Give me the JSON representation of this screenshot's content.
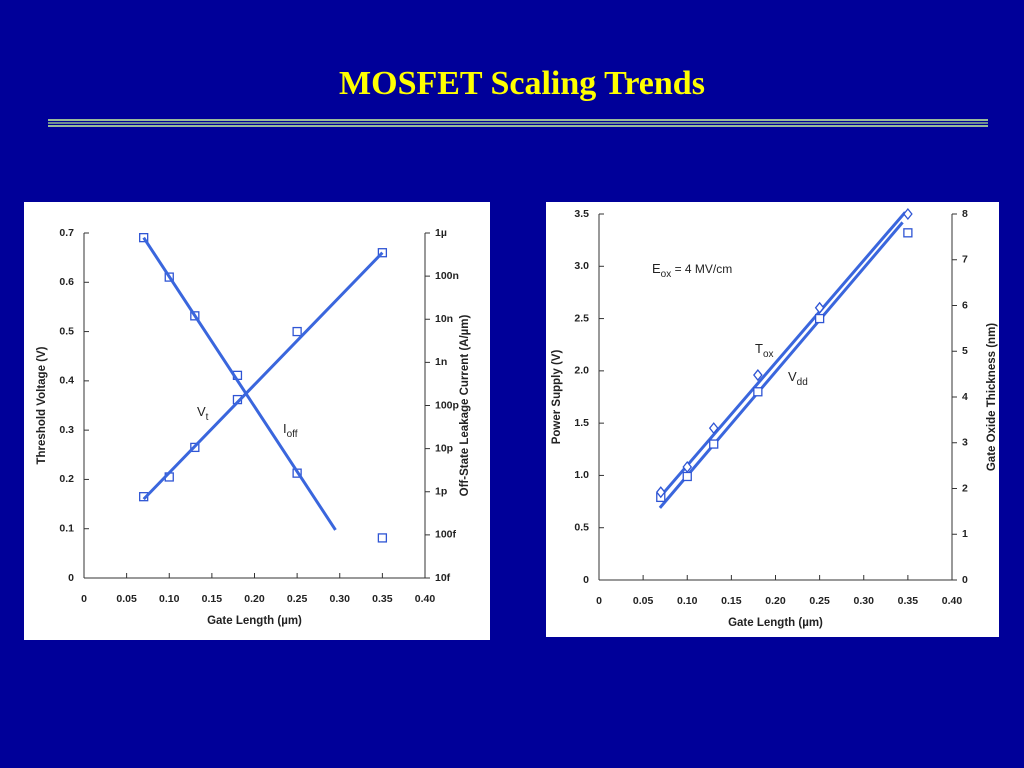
{
  "title": "MOSFET Scaling Trends",
  "chart_data": [
    {
      "type": "scatter",
      "xlabel": "Gate Length (µm)",
      "ylabel": "Threshold Voltage (V)",
      "y2label": "Off-State Leakage Current  (A/µm)",
      "xlim": [
        0,
        0.4
      ],
      "xticks": [
        0,
        0.05,
        {
          "value": 0.1,
          "label": "0.10"
        },
        0.15,
        {
          "value": 0.2,
          "label": "0.20"
        },
        0.25,
        {
          "value": 0.3,
          "label": "0.30"
        },
        0.35,
        {
          "value": 0.4,
          "label": "0.40"
        }
      ],
      "ylim": [
        0,
        0.7
      ],
      "yticks": [
        0,
        0.1,
        0.2,
        0.3,
        0.4,
        0.5,
        0.6,
        0.7
      ],
      "y2scale": "log",
      "y2lim": [
        1e-14,
        1e-06
      ],
      "y2ticks": [
        {
          "value": 1e-14,
          "label": "10f"
        },
        {
          "value": 1e-13,
          "label": "100f"
        },
        {
          "value": 1e-12,
          "label": "1p"
        },
        {
          "value": 1e-11,
          "label": "10p"
        },
        {
          "value": 1e-10,
          "label": "100p"
        },
        {
          "value": 1e-09,
          "label": "1n"
        },
        {
          "value": 1e-08,
          "label": "10n"
        },
        {
          "value": 1e-07,
          "label": "100n"
        },
        {
          "value": 1e-06,
          "label": "1µ"
        }
      ],
      "series": [
        {
          "marker": "square",
          "color": "#2f55d4",
          "x": [
            0.07,
            0.1,
            0.13,
            0.18,
            0.25,
            0.35
          ],
          "values": [
            0.165,
            0.205,
            0.265,
            0.362,
            0.5,
            0.66
          ]
        },
        {
          "marker": "square",
          "color": "#2f55d4",
          "axis": "y2",
          "x": [
            0.07,
            0.1,
            0.13,
            0.18,
            0.25,
            0.35
          ],
          "values": [
            7.8e-07,
            9.5e-08,
            1.2e-08,
            5e-10,
            2.7e-12,
            8.5e-14
          ]
        },
        {
          "marker": "line",
          "color": "#3a66dd",
          "x": [
            0.07,
            0.35
          ],
          "values": [
            0.16,
            0.66
          ]
        },
        {
          "marker": "line",
          "color": "#3a66dd",
          "axis": "y2",
          "x": [
            0.07,
            0.295
          ],
          "values": [
            7.8e-07,
            1.3e-13
          ]
        }
      ],
      "annotations": [
        {
          "base": "V",
          "sub": "t"
        },
        {
          "base": "I",
          "sub": "off"
        }
      ]
    },
    {
      "type": "scatter",
      "xlabel": "Gate Length (µm)",
      "ylabel": "Power Supply (V)",
      "y2label": "Gate Oxide Thickness (nm)",
      "xlim": [
        0,
        0.4
      ],
      "xticks": [
        0,
        0.05,
        {
          "value": 0.1,
          "label": "0.10"
        },
        0.15,
        {
          "value": 0.2,
          "label": "0.20"
        },
        0.25,
        {
          "value": 0.3,
          "label": "0.30"
        },
        0.35,
        {
          "value": 0.4,
          "label": "0.40"
        }
      ],
      "ylim": [
        0,
        3.5
      ],
      "yticks": [
        0,
        0.5,
        {
          "value": 1,
          "label": "1.0"
        },
        1.5,
        {
          "value": 2,
          "label": "2.0"
        },
        2.5,
        {
          "value": 3,
          "label": "3.0"
        },
        3.5
      ],
      "y2scale": "linear",
      "y2lim": [
        0,
        8
      ],
      "y2ticks": [
        0,
        1,
        2,
        3,
        4,
        5,
        6,
        7,
        8
      ],
      "series": [
        {
          "marker": "line",
          "color": "#3a66dd",
          "x": [
            0.069,
            0.344
          ],
          "values": [
            0.69,
            3.42
          ]
        },
        {
          "marker": "line",
          "color": "#3a66dd",
          "axis": "y2",
          "x": [
            0.069,
            0.347
          ],
          "values": [
            1.81,
            8.04
          ]
        },
        {
          "marker": "square",
          "color": "#2f55d4",
          "x": [
            0.07,
            0.1,
            0.13,
            0.18,
            0.25,
            0.35
          ],
          "values": [
            0.79,
            0.99,
            1.3,
            1.8,
            2.5,
            3.32
          ]
        },
        {
          "marker": "diamond",
          "color": "#2f55d4",
          "axis": "y2",
          "x": [
            0.07,
            0.1,
            0.13,
            0.18,
            0.25,
            0.35
          ],
          "values": [
            1.92,
            2.47,
            3.32,
            4.48,
            5.95,
            8.0
          ]
        }
      ],
      "annotations": [
        {
          "base": "E",
          "sub": "ox",
          "rest": " =  4 MV/cm"
        },
        {
          "base": "T",
          "sub": "ox"
        },
        {
          "base": "V",
          "sub": "dd"
        }
      ]
    }
  ]
}
